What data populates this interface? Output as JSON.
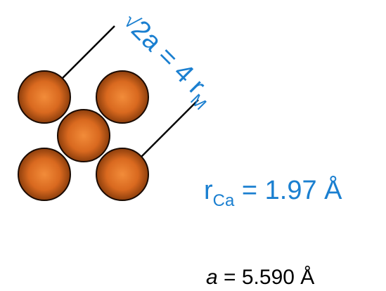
{
  "diagonal_label": {
    "radical": "√",
    "lead": "2a = 4 ",
    "r": "r",
    "sub": "M"
  },
  "radius_label": {
    "r": "r",
    "sub": "Ca",
    "rest": " = 1.97 Å"
  },
  "lattice_label": {
    "var": "a",
    "rest": " = 5.590 Å"
  },
  "colors": {
    "atom_fill": "#e07628",
    "atom_edge": "#1a0a00",
    "label_blue": "#1a7fd0",
    "line": "#000000"
  }
}
